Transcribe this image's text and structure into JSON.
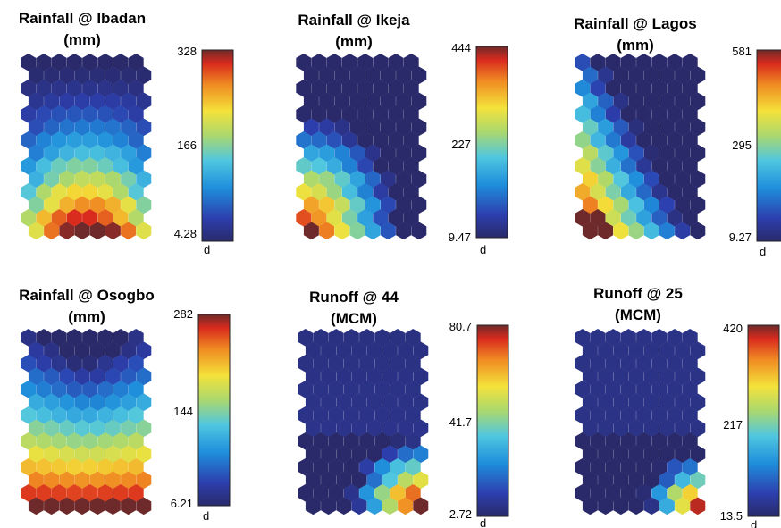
{
  "chart_data": [
    {
      "type": "heatmap",
      "grid": {
        "cols": 8,
        "rows": 14,
        "layout": "hexagonal"
      },
      "title_line1": "Rainfall @ Ibadan",
      "title_line2": "(mm)",
      "colorbar": {
        "max": "328",
        "mid": "166",
        "min": "4.28",
        "label": "d"
      },
      "value_range": [
        4.28,
        328
      ],
      "pattern": {
        "kind": "bottom-center",
        "peak_col": 3.5,
        "spread": 3.2
      },
      "colormap": "jet"
    },
    {
      "type": "heatmap",
      "grid": {
        "cols": 8,
        "rows": 14,
        "layout": "hexagonal"
      },
      "title_line1": "Rainfall @ Ikeja",
      "title_line2": "(mm)",
      "colorbar": {
        "max": "444",
        "mid": "227",
        "min": "9.47",
        "label": "d"
      },
      "value_range": [
        9.47,
        444
      ],
      "pattern": {
        "kind": "bottom-left-corner"
      },
      "colormap": "jet"
    },
    {
      "type": "heatmap",
      "grid": {
        "cols": 8,
        "rows": 14,
        "layout": "hexagonal"
      },
      "title_line1": "Rainfall @ Lagos",
      "title_line2": "(mm)",
      "colorbar": {
        "max": "581",
        "mid": "295",
        "min": "9.27",
        "label": "d"
      },
      "value_range": [
        9.27,
        581
      ],
      "pattern": {
        "kind": "left-diagonal"
      },
      "colormap": "jet"
    },
    {
      "type": "heatmap",
      "grid": {
        "cols": 8,
        "rows": 14,
        "layout": "hexagonal"
      },
      "title_line1": "Rainfall @ Osogbo",
      "title_line2": "(mm)",
      "colorbar": {
        "max": "282",
        "mid": "144",
        "min": "6.21",
        "label": "d"
      },
      "value_range": [
        6.21,
        282
      ],
      "pattern": {
        "kind": "bottom-v"
      },
      "colormap": "jet"
    },
    {
      "type": "heatmap",
      "grid": {
        "cols": 8,
        "rows": 14,
        "layout": "hexagonal"
      },
      "title_line1": "Runoff @ 44",
      "title_line2": "(MCM)",
      "colorbar": {
        "max": "80.7",
        "mid": "41.7",
        "min": "2.72",
        "label": "d"
      },
      "value_range": [
        2.72,
        80.7
      ],
      "pattern": {
        "kind": "bottom-right-corner"
      },
      "colormap": "jet"
    },
    {
      "type": "heatmap",
      "grid": {
        "cols": 8,
        "rows": 14,
        "layout": "hexagonal"
      },
      "title_line1": "Runoff @ 25",
      "title_line2": "(MCM)",
      "colorbar": {
        "max": "420",
        "mid": "217",
        "min": "13.5",
        "label": "d"
      },
      "value_range": [
        13.5,
        420
      ],
      "pattern": {
        "kind": "bottom-right-small"
      },
      "colormap": "jet"
    }
  ]
}
